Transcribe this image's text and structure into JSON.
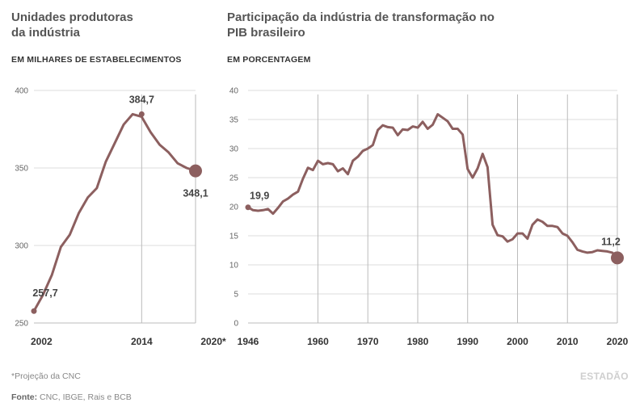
{
  "charts": {
    "left": {
      "title_line1": "Unidades produtoras",
      "title_line2": "da indústria",
      "subtitle": "EM MILHARES DE ESTABELECIMENTOS"
    },
    "right": {
      "title_line1": "Participação da indústria de transformação no",
      "title_line2": "PIB brasileiro",
      "subtitle": "EM PORCENTAGEM"
    }
  },
  "footnote": "*Projeção da CNC",
  "source_label": "Fonte:",
  "source_text": " CNC, IBGE, Rais e BCB",
  "brand": "ESTADÃO",
  "colors": {
    "line": "#8c5f5f",
    "axis": "#bbbbbb",
    "text": "#333333"
  },
  "chart_data": [
    {
      "type": "line",
      "title": "Unidades produtoras da indústria",
      "subtitle": "EM MILHARES DE ESTABELECIMENTOS",
      "x_ticks": [
        "2002",
        "2014",
        "2020*"
      ],
      "y_ticks": [
        "250",
        "300",
        "350",
        "400"
      ],
      "ylim": [
        250,
        400
      ],
      "xlim": [
        2002,
        2020
      ],
      "grid": "horizontal",
      "x": [
        2002,
        2003,
        2004,
        2005,
        2006,
        2007,
        2008,
        2009,
        2010,
        2011,
        2012,
        2013,
        2014,
        2015,
        2016,
        2017,
        2018,
        2019,
        2020
      ],
      "values": [
        257.7,
        268,
        281,
        299,
        307,
        321,
        331,
        337,
        354,
        366,
        378,
        384.7,
        383,
        373,
        365,
        360,
        353,
        350,
        348.1
      ],
      "annotations": [
        {
          "x": 2002,
          "y": 257.7,
          "label": "257,7",
          "position": "above"
        },
        {
          "x": 2014,
          "y": 384.7,
          "label": "384,7",
          "position": "above"
        },
        {
          "x": 2020,
          "y": 348.1,
          "label": "348,1",
          "position": "below"
        }
      ]
    },
    {
      "type": "line",
      "title": "Participação da indústria de transformação no PIB brasileiro",
      "subtitle": "EM PORCENTAGEM",
      "x_ticks": [
        "1946",
        "1960",
        "1970",
        "1980",
        "1990",
        "2000",
        "2010",
        "2020"
      ],
      "y_ticks": [
        "0",
        "5",
        "10",
        "15",
        "20",
        "25",
        "30",
        "35",
        "40"
      ],
      "ylim": [
        0,
        40
      ],
      "xlim": [
        1946,
        2020
      ],
      "grid": "horizontal",
      "x": [
        1946,
        1947,
        1948,
        1949,
        1950,
        1951,
        1952,
        1953,
        1954,
        1955,
        1956,
        1957,
        1958,
        1959,
        1960,
        1961,
        1962,
        1963,
        1964,
        1965,
        1966,
        1967,
        1968,
        1969,
        1970,
        1971,
        1972,
        1973,
        1974,
        1975,
        1976,
        1977,
        1978,
        1979,
        1980,
        1981,
        1982,
        1983,
        1984,
        1985,
        1986,
        1987,
        1988,
        1989,
        1990,
        1991,
        1992,
        1993,
        1994,
        1995,
        1996,
        1997,
        1998,
        1999,
        2000,
        2001,
        2002,
        2003,
        2004,
        2005,
        2006,
        2007,
        2008,
        2009,
        2010,
        2011,
        2012,
        2013,
        2014,
        2015,
        2016,
        2017,
        2018,
        2019,
        2020
      ],
      "values": [
        19.9,
        19.4,
        19.3,
        19.4,
        19.6,
        18.8,
        19.8,
        20.9,
        21.4,
        22.1,
        22.6,
        24.8,
        26.7,
        26.3,
        27.9,
        27.3,
        27.5,
        27.3,
        26.1,
        26.6,
        25.6,
        27.9,
        28.6,
        29.6,
        30,
        30.6,
        33.2,
        34,
        33.7,
        33.6,
        32.3,
        33.3,
        33.2,
        33.8,
        33.6,
        34.6,
        33.4,
        34.1,
        35.9,
        35.3,
        34.7,
        33.4,
        33.4,
        32.4,
        26.5,
        25,
        26.6,
        29.1,
        26.8,
        16.9,
        15.1,
        14.9,
        14,
        14.4,
        15.4,
        15.4,
        14.5,
        16.9,
        17.8,
        17.4,
        16.7,
        16.7,
        16.5,
        15.4,
        15,
        13.9,
        12.6,
        12.3,
        12.1,
        12.2,
        12.5,
        12.4,
        12.3,
        12.1,
        11.2
      ],
      "annotations": [
        {
          "x": 1946,
          "y": 19.9,
          "label": "19,9",
          "position": "above"
        },
        {
          "x": 2020,
          "y": 11.2,
          "label": "11,2",
          "position": "above"
        }
      ]
    }
  ]
}
